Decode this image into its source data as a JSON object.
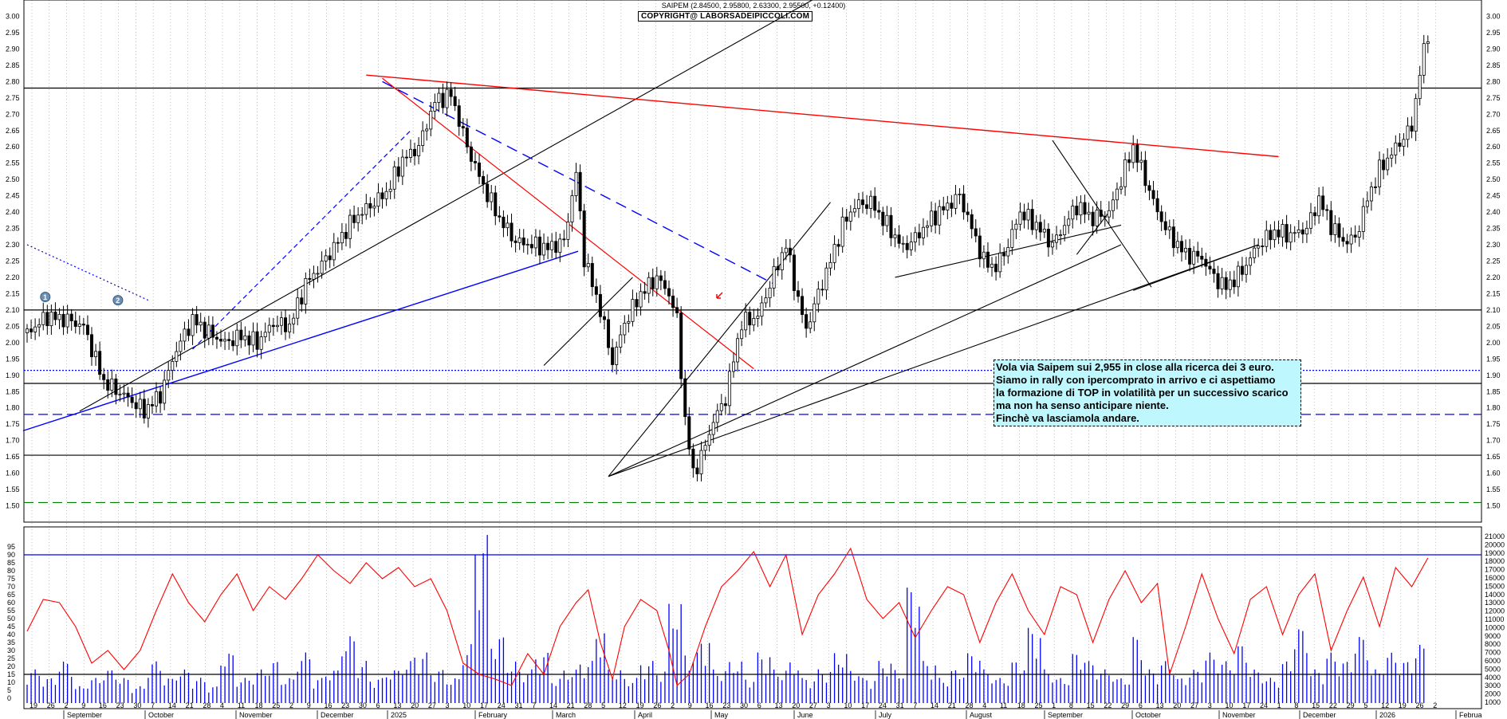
{
  "header": {
    "ohlc": "SAIPEM (2.84500, 2.95800, 2.63300, 2.95500, +0.12400)",
    "copyright": "COPYRIGHT@ LABORSADEIPICCOLI.COM"
  },
  "note": {
    "lines": [
      "Vola via Saipem sui 2,955 in close alla ricerca dei 3 euro.",
      "Siamo in rally con ipercomprato in arrivo e ci aspettiamo",
      "la formazione di TOP in volatilità per un successivo scarico",
      "ma non ha senso anticipare niente.",
      "Finchè va lasciamola andare."
    ]
  },
  "markers": [
    "1",
    "2"
  ],
  "colors": {
    "candle": "#000000",
    "red_line": "#ff0000",
    "blue_line": "#0000ff",
    "green_dash": "#008000",
    "note_bg": "#bff7ff"
  },
  "chart_data": [
    {
      "type": "candlestick",
      "price_ticks": [
        "3.00",
        "2.95",
        "2.90",
        "2.85",
        "2.80",
        "2.75",
        "2.70",
        "2.65",
        "2.60",
        "2.55",
        "2.50",
        "2.45",
        "2.40",
        "2.35",
        "2.30",
        "2.25",
        "2.20",
        "2.15",
        "2.10",
        "2.05",
        "2.00",
        "1.95",
        "1.90",
        "1.85",
        "1.80",
        "1.75",
        "1.70",
        "1.65",
        "1.60",
        "1.55",
        "1.50"
      ],
      "ylim": [
        1.45,
        3.05
      ],
      "horizontal_levels": [
        {
          "value": 2.78,
          "style": "solid",
          "color": "#000000"
        },
        {
          "value": 2.1,
          "style": "solid",
          "color": "#000000"
        },
        {
          "value": 1.915,
          "style": "dotted",
          "color": "#0000ff"
        },
        {
          "value": 1.875,
          "style": "solid",
          "color": "#000000"
        },
        {
          "value": 1.78,
          "style": "dashed",
          "color": "#0000ff"
        },
        {
          "value": 1.655,
          "style": "solid",
          "color": "#000000"
        },
        {
          "value": 1.51,
          "style": "dashed",
          "color": "#008000"
        }
      ],
      "price_path": [
        [
          0,
          2.03
        ],
        [
          10,
          2.08
        ],
        [
          20,
          2.07
        ],
        [
          28,
          2.05
        ],
        [
          38,
          1.88
        ],
        [
          50,
          1.83
        ],
        [
          58,
          1.79
        ],
        [
          66,
          1.84
        ],
        [
          74,
          1.98
        ],
        [
          82,
          2.07
        ],
        [
          90,
          2.03
        ],
        [
          98,
          2.0
        ],
        [
          106,
          2.02
        ],
        [
          114,
          2.0
        ],
        [
          122,
          2.06
        ],
        [
          130,
          2.05
        ],
        [
          138,
          2.18
        ],
        [
          146,
          2.24
        ],
        [
          154,
          2.31
        ],
        [
          162,
          2.38
        ],
        [
          170,
          2.42
        ],
        [
          178,
          2.46
        ],
        [
          186,
          2.56
        ],
        [
          194,
          2.6
        ],
        [
          202,
          2.74
        ],
        [
          210,
          2.76
        ],
        [
          218,
          2.6
        ],
        [
          226,
          2.48
        ],
        [
          234,
          2.38
        ],
        [
          242,
          2.31
        ],
        [
          250,
          2.3
        ],
        [
          258,
          2.29
        ],
        [
          266,
          2.31
        ],
        [
          272,
          2.52
        ],
        [
          276,
          2.26
        ],
        [
          284,
          2.1
        ],
        [
          290,
          1.94
        ],
        [
          296,
          2.06
        ],
        [
          304,
          2.15
        ],
        [
          312,
          2.2
        ],
        [
          318,
          2.15
        ],
        [
          322,
          2.07
        ],
        [
          326,
          1.76
        ],
        [
          330,
          1.6
        ],
        [
          334,
          1.65
        ],
        [
          340,
          1.76
        ],
        [
          346,
          1.83
        ],
        [
          350,
          1.95
        ],
        [
          354,
          2.06
        ],
        [
          362,
          2.08
        ],
        [
          370,
          2.21
        ],
        [
          376,
          2.3
        ],
        [
          382,
          2.13
        ],
        [
          386,
          2.04
        ],
        [
          392,
          2.15
        ],
        [
          398,
          2.25
        ],
        [
          404,
          2.36
        ],
        [
          410,
          2.42
        ],
        [
          418,
          2.43
        ],
        [
          426,
          2.36
        ],
        [
          434,
          2.29
        ],
        [
          440,
          2.32
        ],
        [
          448,
          2.38
        ],
        [
          456,
          2.42
        ],
        [
          462,
          2.45
        ],
        [
          468,
          2.35
        ],
        [
          474,
          2.25
        ],
        [
          480,
          2.23
        ],
        [
          486,
          2.3
        ],
        [
          492,
          2.4
        ],
        [
          500,
          2.36
        ],
        [
          508,
          2.3
        ],
        [
          514,
          2.36
        ],
        [
          520,
          2.42
        ],
        [
          528,
          2.38
        ],
        [
          536,
          2.4
        ],
        [
          542,
          2.5
        ],
        [
          548,
          2.6
        ],
        [
          554,
          2.5
        ],
        [
          560,
          2.4
        ],
        [
          566,
          2.33
        ],
        [
          574,
          2.27
        ],
        [
          582,
          2.26
        ],
        [
          588,
          2.2
        ],
        [
          594,
          2.17
        ],
        [
          602,
          2.22
        ],
        [
          610,
          2.3
        ],
        [
          618,
          2.34
        ],
        [
          626,
          2.33
        ],
        [
          634,
          2.35
        ],
        [
          640,
          2.44
        ],
        [
          646,
          2.36
        ],
        [
          652,
          2.31
        ],
        [
          658,
          2.32
        ],
        [
          664,
          2.44
        ],
        [
          670,
          2.53
        ],
        [
          676,
          2.58
        ],
        [
          682,
          2.63
        ],
        [
          686,
          2.66
        ],
        [
          690,
          2.83
        ],
        [
          694,
          2.95
        ]
      ],
      "x_ticks_days": [
        "19",
        "26",
        "2",
        "9",
        "16",
        "23",
        "30",
        "7",
        "14",
        "21",
        "28",
        "4",
        "11",
        "18",
        "25",
        "2",
        "9",
        "16",
        "23",
        "30",
        "6",
        "13",
        "20",
        "27",
        "3",
        "10",
        "17",
        "24",
        "31",
        "7",
        "14",
        "21",
        "28",
        "5",
        "12",
        "19",
        "26",
        "2",
        "9",
        "16",
        "23",
        "30",
        "6",
        "13",
        "20",
        "27",
        "3",
        "10",
        "17",
        "24",
        "31",
        "7",
        "14",
        "21",
        "28",
        "4",
        "11",
        "18",
        "25",
        "1",
        "8",
        "15",
        "22",
        "29",
        "6",
        "13",
        "20",
        "27",
        "3",
        "10",
        "17",
        "24",
        "1",
        "8",
        "15",
        "22",
        "29",
        "5",
        "12",
        "19",
        "26",
        "2"
      ],
      "x_ticks_months": [
        "September",
        "October",
        "November",
        "December",
        "2025",
        "February",
        "March",
        "April",
        "May",
        "June",
        "July",
        "August",
        "September",
        "October",
        "November",
        "December",
        "2026",
        "Februa"
      ]
    },
    {
      "type": "line+bar",
      "rsi_ticks": [
        "95",
        "90",
        "85",
        "80",
        "75",
        "70",
        "65",
        "60",
        "55",
        "50",
        "45",
        "40",
        "35",
        "30",
        "25",
        "20",
        "15",
        "10",
        "5",
        "0"
      ],
      "rsi_ylim": [
        0,
        100
      ],
      "volume_ticks": [
        "21000",
        "20000",
        "19000",
        "18000",
        "17000",
        "16000",
        "15000",
        "14000",
        "13000",
        "12000",
        "11000",
        "10000",
        "9000",
        "8000",
        "7000",
        "6000",
        "5000",
        "4000",
        "3000",
        "2000",
        "1000"
      ],
      "reference_levels": [
        90,
        15
      ],
      "rsi_path": [
        [
          0,
          42
        ],
        [
          8,
          62
        ],
        [
          16,
          60
        ],
        [
          24,
          45
        ],
        [
          32,
          22
        ],
        [
          40,
          30
        ],
        [
          48,
          18
        ],
        [
          56,
          30
        ],
        [
          64,
          55
        ],
        [
          72,
          78
        ],
        [
          80,
          60
        ],
        [
          88,
          48
        ],
        [
          96,
          65
        ],
        [
          104,
          78
        ],
        [
          112,
          55
        ],
        [
          120,
          70
        ],
        [
          128,
          62
        ],
        [
          136,
          75
        ],
        [
          144,
          90
        ],
        [
          152,
          80
        ],
        [
          160,
          72
        ],
        [
          168,
          85
        ],
        [
          176,
          75
        ],
        [
          184,
          82
        ],
        [
          192,
          70
        ],
        [
          200,
          75
        ],
        [
          208,
          55
        ],
        [
          216,
          22
        ],
        [
          224,
          15
        ],
        [
          232,
          12
        ],
        [
          240,
          8
        ],
        [
          248,
          28
        ],
        [
          256,
          15
        ],
        [
          264,
          45
        ],
        [
          272,
          60
        ],
        [
          278,
          68
        ],
        [
          284,
          35
        ],
        [
          290,
          12
        ],
        [
          296,
          45
        ],
        [
          304,
          62
        ],
        [
          312,
          55
        ],
        [
          318,
          30
        ],
        [
          322,
          8
        ],
        [
          328,
          15
        ],
        [
          336,
          45
        ],
        [
          344,
          70
        ],
        [
          352,
          80
        ],
        [
          360,
          92
        ],
        [
          368,
          70
        ],
        [
          376,
          90
        ],
        [
          384,
          40
        ],
        [
          392,
          65
        ],
        [
          400,
          78
        ],
        [
          408,
          94
        ],
        [
          416,
          62
        ],
        [
          424,
          50
        ],
        [
          432,
          60
        ],
        [
          440,
          38
        ],
        [
          448,
          55
        ],
        [
          456,
          70
        ],
        [
          464,
          65
        ],
        [
          472,
          35
        ],
        [
          480,
          60
        ],
        [
          488,
          78
        ],
        [
          496,
          55
        ],
        [
          504,
          40
        ],
        [
          512,
          70
        ],
        [
          520,
          65
        ],
        [
          528,
          35
        ],
        [
          536,
          62
        ],
        [
          544,
          80
        ],
        [
          552,
          60
        ],
        [
          560,
          72
        ],
        [
          566,
          15
        ],
        [
          574,
          45
        ],
        [
          582,
          78
        ],
        [
          590,
          50
        ],
        [
          598,
          28
        ],
        [
          606,
          62
        ],
        [
          614,
          70
        ],
        [
          622,
          40
        ],
        [
          630,
          65
        ],
        [
          638,
          78
        ],
        [
          646,
          30
        ],
        [
          654,
          55
        ],
        [
          662,
          76
        ],
        [
          670,
          45
        ],
        [
          678,
          82
        ],
        [
          686,
          70
        ],
        [
          694,
          88
        ]
      ],
      "volume_bars_thousands": [
        4,
        3,
        5,
        2,
        3,
        4,
        3,
        2,
        5,
        3,
        4,
        3,
        2,
        6,
        3,
        4,
        5,
        3,
        6,
        3,
        4,
        8,
        5,
        3,
        4,
        5,
        6,
        4,
        3,
        7,
        20,
        8,
        5,
        4,
        6,
        3,
        4,
        5,
        9,
        4,
        3,
        5,
        4,
        12,
        6,
        8,
        4,
        5,
        3,
        6,
        4,
        5,
        3,
        4,
        6,
        4,
        3,
        5,
        4,
        14,
        5,
        3,
        4,
        6,
        4,
        3,
        5,
        9,
        4,
        3,
        6,
        5,
        4,
        3,
        8,
        4,
        5,
        3,
        4,
        6,
        5,
        7,
        4,
        3,
        5,
        9,
        4,
        6,
        5,
        8,
        4,
        6,
        5,
        7
      ]
    }
  ]
}
